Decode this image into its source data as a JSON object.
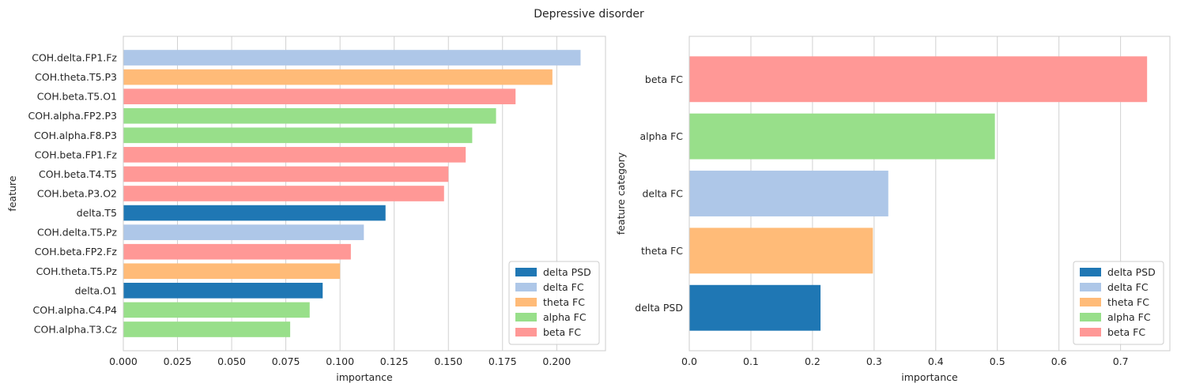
{
  "figure": {
    "title": "Depressive disorder"
  },
  "legend_entries": [
    {
      "label": "delta PSD",
      "color": "#1f77b4"
    },
    {
      "label": "delta FC",
      "color": "#aec7e8"
    },
    {
      "label": "theta FC",
      "color": "#ffbb78"
    },
    {
      "label": "alpha FC",
      "color": "#98df8a"
    },
    {
      "label": "beta FC",
      "color": "#ff9896"
    }
  ],
  "chart_data": [
    {
      "type": "bar",
      "orientation": "horizontal",
      "xlabel": "importance",
      "ylabel": "feature",
      "xlim": [
        0,
        0.2225
      ],
      "xticks": [
        "0.000",
        "0.025",
        "0.050",
        "0.075",
        "0.100",
        "0.125",
        "0.150",
        "0.175",
        "0.200"
      ],
      "grid": "x",
      "legend_position": "lower-right",
      "categories": [
        "COH.delta.FP1.Fz",
        "COH.theta.T5.P3",
        "COH.beta.T5.O1",
        "COH.alpha.FP2.P3",
        "COH.alpha.F8.P3",
        "COH.beta.FP1.Fz",
        "COH.beta.T4.T5",
        "COH.beta.P3.O2",
        "delta.T5",
        "COH.delta.T5.Pz",
        "COH.beta.FP2.Fz",
        "COH.theta.T5.Pz",
        "delta.O1",
        "COH.alpha.C4.P4",
        "COH.alpha.T3.Cz"
      ],
      "values": [
        0.211,
        0.198,
        0.181,
        0.172,
        0.161,
        0.158,
        0.15,
        0.148,
        0.121,
        0.111,
        0.105,
        0.1,
        0.092,
        0.086,
        0.077
      ],
      "groups": [
        "delta FC",
        "theta FC",
        "beta FC",
        "alpha FC",
        "alpha FC",
        "beta FC",
        "beta FC",
        "beta FC",
        "delta PSD",
        "delta FC",
        "beta FC",
        "theta FC",
        "delta PSD",
        "alpha FC",
        "alpha FC"
      ]
    },
    {
      "type": "bar",
      "orientation": "horizontal",
      "xlabel": "importance",
      "ylabel": "feature category",
      "xlim": [
        0,
        0.78
      ],
      "xticks": [
        "0.0",
        "0.1",
        "0.2",
        "0.3",
        "0.4",
        "0.5",
        "0.6",
        "0.7"
      ],
      "grid": "x",
      "legend_position": "lower-right",
      "categories": [
        "beta FC",
        "alpha FC",
        "delta FC",
        "theta FC",
        "delta PSD"
      ],
      "values": [
        0.743,
        0.496,
        0.323,
        0.298,
        0.213
      ],
      "groups": [
        "beta FC",
        "alpha FC",
        "delta FC",
        "theta FC",
        "delta PSD"
      ]
    }
  ]
}
